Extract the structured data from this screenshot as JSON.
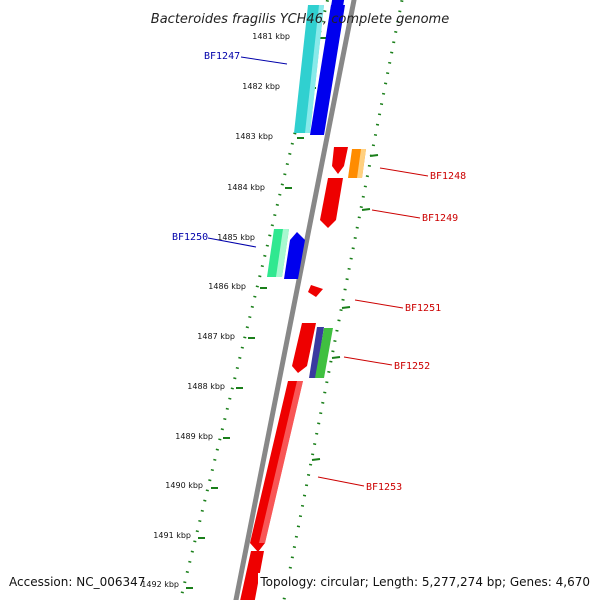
{
  "title": "Bacteroides fragilis YCH46, complete genome",
  "footer": {
    "accession": "Accession: NC_006347",
    "topology": "Topology: circular; Length: 5,277,274 bp; Genes: 4,670"
  },
  "colors": {
    "backbone": "#888888",
    "dotted_track": "#1a7f1a",
    "label_blue": "#0000aa",
    "label_red": "#cc0000"
  },
  "ticks": [
    "1481 kbp",
    "1482 kbp",
    "1483 kbp",
    "1484 kbp",
    "1485 kbp",
    "1486 kbp",
    "1487 kbp",
    "1488 kbp",
    "1489 kbp",
    "1490 kbp",
    "1491 kbp",
    "1492 kbp"
  ],
  "genes": [
    {
      "name": "BF1247",
      "side": "left",
      "label_color": "blue",
      "strand": "forward",
      "colors": [
        "#30d0d0",
        "#0000ee"
      ]
    },
    {
      "name": "BF1248",
      "side": "right",
      "label_color": "red",
      "strand": "reverse",
      "colors": [
        "#ee0000",
        "#ff8c00"
      ]
    },
    {
      "name": "BF1249",
      "side": "right",
      "label_color": "red",
      "strand": "reverse",
      "colors": [
        "#ee0000"
      ]
    },
    {
      "name": "BF1250",
      "side": "left",
      "label_color": "blue",
      "strand": "forward",
      "colors": [
        "#30e890",
        "#0000ee"
      ]
    },
    {
      "name": "BF1251",
      "side": "right",
      "label_color": "red",
      "strand": "reverse",
      "colors": [
        "#ee0000"
      ]
    },
    {
      "name": "BF1252",
      "side": "right",
      "label_color": "red",
      "strand": "reverse",
      "colors": [
        "#ee0000",
        "#3a3aa0",
        "#40c040"
      ]
    },
    {
      "name": "BF1253",
      "side": "right",
      "label_color": "red",
      "strand": "reverse",
      "colors": [
        "#ee0000"
      ]
    }
  ]
}
